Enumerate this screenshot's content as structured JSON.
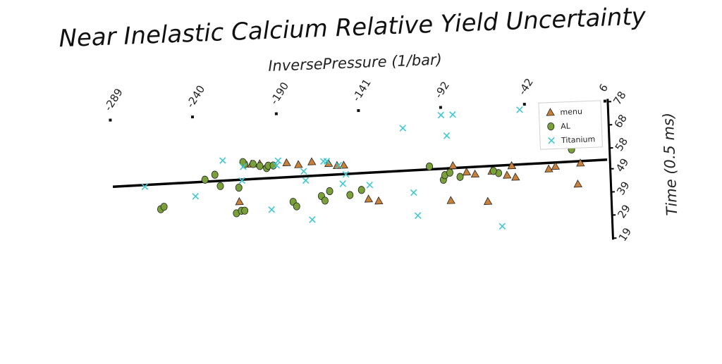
{
  "chart_data": {
    "type": "scatter",
    "title": "Near Inelastic Calcium Relative Yield Uncertainty",
    "xlabel": "InversePressure (1/bar)",
    "ylabel": "Time (0.5 ms)",
    "xlim": [
      -289,
      6
    ],
    "ylim": [
      19,
      78
    ],
    "x_ticks": [
      "-289",
      "-240",
      "-190",
      "-141",
      "-92",
      "-42",
      "6"
    ],
    "y_ticks": [
      "19",
      "29",
      "39",
      "49",
      "58",
      "68",
      "78"
    ],
    "grid": false,
    "legend_position": "top-right",
    "trend_line": {
      "x": [
        -289,
        6
      ],
      "y": [
        49.5,
        53.0
      ]
    },
    "series": [
      {
        "name": "menu",
        "marker": "triangle",
        "color": "#c8803a",
        "x": [
          -214,
          -206,
          -201,
          -185,
          -178,
          -170,
          -160,
          -155,
          -151,
          -137,
          -131,
          -88,
          -86,
          -78,
          -73,
          -66,
          -63,
          -54,
          -51,
          -51,
          -49,
          -29,
          -25,
          -12,
          -10
        ],
        "y": [
          41,
          57,
          57,
          57,
          56,
          57,
          56,
          55,
          55,
          40,
          39,
          38,
          53,
          50,
          49,
          37,
          50,
          48,
          52,
          52,
          47,
          50,
          51,
          43,
          52
        ]
      },
      {
        "name": "AL",
        "marker": "circle",
        "color": "#7aa03a",
        "x": [
          -261,
          -259,
          -234,
          -228,
          -225,
          -214,
          -216,
          -213,
          -211,
          -210,
          -211,
          -205,
          -201,
          -197,
          -196,
          -193,
          -182,
          -180,
          -165,
          -163,
          -160,
          -148,
          -141,
          -92,
          -91,
          -100,
          -100,
          -82,
          -59,
          -88,
          -62,
          -15
        ],
        "y": [
          39,
          40,
          51,
          53,
          48,
          47,
          36,
          37,
          37,
          57,
          58,
          57,
          56,
          55,
          56,
          56,
          40,
          38,
          42,
          40,
          44,
          42,
          44,
          47,
          49,
          53,
          53,
          48,
          49,
          50,
          50,
          58
        ]
      },
      {
        "name": "Titanium",
        "marker": "x",
        "color": "#40c8d0",
        "x": [
          -270,
          -240,
          -212,
          -211,
          -223,
          -195,
          -191,
          -190,
          -175,
          -174,
          -171,
          -163,
          -161,
          -154,
          -150,
          -152,
          -136,
          -115,
          -110,
          -108,
          -92,
          -89,
          -85,
          -58,
          -45
        ],
        "y": [
          49,
          44,
          50,
          56,
          59,
          37,
          56,
          58,
          53,
          49,
          32,
          57,
          57,
          55,
          51,
          47,
          46,
          70,
          42,
          32,
          75,
          66,
          75,
          26,
          76
        ]
      }
    ]
  }
}
